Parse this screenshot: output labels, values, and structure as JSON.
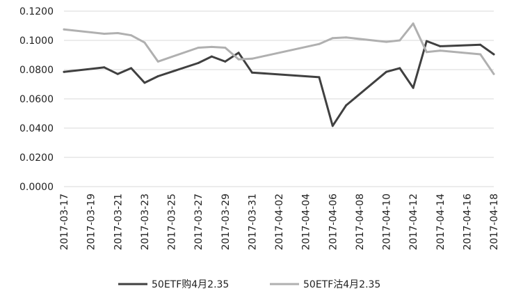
{
  "chart_data": {
    "type": "line",
    "title": "",
    "xlabel": "",
    "ylabel": "",
    "ylim": [
      0,
      0.12
    ],
    "yticks": [
      "0.0000",
      "0.0200",
      "0.0400",
      "0.0600",
      "0.0800",
      "0.1000",
      "0.1200"
    ],
    "x": [
      "2017-03-17",
      "2017-03-20",
      "2017-03-21",
      "2017-03-22",
      "2017-03-23",
      "2017-03-24",
      "2017-03-27",
      "2017-03-28",
      "2017-03-29",
      "2017-03-30",
      "2017-03-31",
      "2017-04-05",
      "2017-04-06",
      "2017-04-07",
      "2017-04-10",
      "2017-04-11",
      "2017-04-12",
      "2017-04-13",
      "2017-04-14",
      "2017-04-17",
      "2017-04-18"
    ],
    "xticks": [
      "2017-03-17",
      "2017-03-19",
      "2017-03-21",
      "2017-03-23",
      "2017-03-25",
      "2017-03-27",
      "2017-03-29",
      "2017-03-31",
      "2017-04-02",
      "2017-04-04",
      "2017-04-06",
      "2017-04-08",
      "2017-04-10",
      "2017-04-12",
      "2017-04-14",
      "2017-04-16",
      "2017-04-18"
    ],
    "grid": true,
    "legend_position": "bottom",
    "series": [
      {
        "name": "50ETF购4月2.35",
        "color": "#404040",
        "values": [
          0.0785,
          0.0815,
          0.077,
          0.081,
          0.071,
          0.0755,
          0.0845,
          0.089,
          0.0855,
          0.0915,
          0.078,
          0.0748,
          0.0415,
          0.0555,
          0.0785,
          0.081,
          0.0675,
          0.0995,
          0.096,
          0.097,
          0.0905
        ]
      },
      {
        "name": "50ETF沽4月2.35",
        "color": "#b0b0b0",
        "values": [
          0.1075,
          0.1045,
          0.105,
          0.1035,
          0.0985,
          0.0855,
          0.095,
          0.0955,
          0.095,
          0.087,
          0.0875,
          0.0975,
          0.1015,
          0.102,
          0.099,
          0.1,
          0.1115,
          0.092,
          0.093,
          0.0905,
          0.077
        ]
      }
    ]
  }
}
